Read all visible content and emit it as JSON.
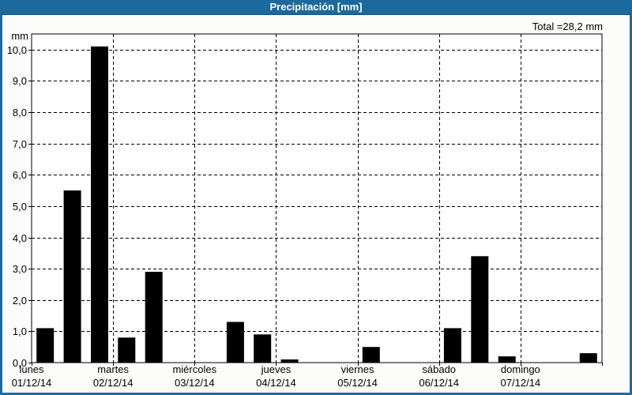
{
  "window": {
    "title": "Precipitación [mm]"
  },
  "summary": {
    "total_label": "Total =28,2 mm",
    "total_mm": 28.2
  },
  "colors": {
    "titlebar_bg": "#1C699D",
    "titlebar_edge": "#10517B",
    "frame": "#1C699D",
    "background": "#FCFCFA",
    "plot_bg": "#FFFFFF",
    "bar": "#000000",
    "grid": "#000000",
    "axis": "#000000",
    "text": "#000000",
    "title_text": "#FFFFFF"
  },
  "chart_data": {
    "type": "bar",
    "title": "Precipitación [mm]",
    "unit_label": "mm",
    "total_label": "Total =28,2 mm",
    "ylim": [
      0,
      10.5
    ],
    "grid": "dashed",
    "legend": "none",
    "slots_per_day": 3,
    "yticks": [
      {
        "v": 0,
        "label": "0,0"
      },
      {
        "v": 1,
        "label": "1,0"
      },
      {
        "v": 2,
        "label": "2,0"
      },
      {
        "v": 3,
        "label": "3,0"
      },
      {
        "v": 4,
        "label": "4,0"
      },
      {
        "v": 5,
        "label": "5,0"
      },
      {
        "v": 6,
        "label": "6,0"
      },
      {
        "v": 7,
        "label": "7,0"
      },
      {
        "v": 8,
        "label": "8,0"
      },
      {
        "v": 9,
        "label": "9,0"
      },
      {
        "v": 10,
        "label": "10,0"
      }
    ],
    "days": [
      {
        "name": "lunes",
        "date": "01/12/14",
        "values": [
          1.1,
          5.5,
          10.1
        ]
      },
      {
        "name": "martes",
        "date": "02/12/14",
        "values": [
          0.8,
          2.9,
          0
        ]
      },
      {
        "name": "miércoles",
        "date": "03/12/14",
        "values": [
          0,
          1.3,
          0.9
        ]
      },
      {
        "name": "jueves",
        "date": "04/12/14",
        "values": [
          0.1,
          0,
          0
        ]
      },
      {
        "name": "viernes",
        "date": "05/12/14",
        "values": [
          0.5,
          0,
          0
        ]
      },
      {
        "name": "sábado",
        "date": "06/12/14",
        "values": [
          1.1,
          3.4,
          0.2
        ]
      },
      {
        "name": "domingo",
        "date": "07/12/14",
        "values": [
          0,
          0,
          0.3
        ]
      }
    ]
  }
}
